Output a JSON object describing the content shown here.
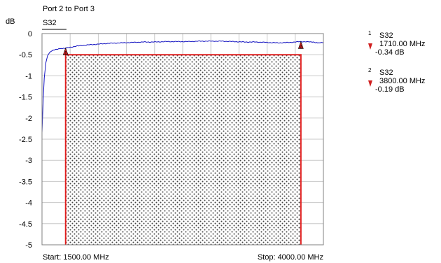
{
  "chart_data": {
    "type": "line",
    "title": "Port 2 to Port 3",
    "trace_label": "S32",
    "ylabel": "dB",
    "ylim": [
      -5,
      0
    ],
    "yticks": [
      0,
      -0.5,
      -1,
      -1.5,
      -2,
      -2.5,
      -3,
      -3.5,
      -4,
      -4.5,
      -5
    ],
    "ytick_labels": [
      "0",
      "-0.5",
      "-1",
      "-1.5",
      "-2",
      "-2.5",
      "-3",
      "-3.5",
      "-4",
      "-4.5",
      "-5"
    ],
    "xlim": [
      1500,
      4000
    ],
    "x_unit": "MHz",
    "start_label": "Start: 1500.00 MHz",
    "stop_label": "Stop: 4000.00 MHz",
    "grid": true,
    "series": [
      {
        "color": "#1010c0",
        "x": [
          1500,
          1510,
          1520,
          1535,
          1550,
          1570,
          1600,
          1650,
          1700,
          1800,
          1900,
          2000,
          2100,
          2200,
          2300,
          2400,
          2500,
          2600,
          2700,
          2800,
          2900,
          3000,
          3100,
          3200,
          3300,
          3400,
          3500,
          3600,
          3700,
          3800,
          3900,
          3950,
          4000
        ],
        "y": [
          -2.35,
          -1.6,
          -1.05,
          -0.68,
          -0.52,
          -0.44,
          -0.39,
          -0.36,
          -0.35,
          -0.3,
          -0.27,
          -0.25,
          -0.23,
          -0.22,
          -0.21,
          -0.2,
          -0.2,
          -0.19,
          -0.19,
          -0.19,
          -0.18,
          -0.18,
          -0.18,
          -0.19,
          -0.2,
          -0.2,
          -0.21,
          -0.22,
          -0.21,
          -0.19,
          -0.2,
          -0.22,
          -0.21
        ]
      }
    ],
    "limit_mask": {
      "x_start": 1710,
      "x_end": 3800,
      "level": -0.5,
      "color": "#e02020"
    },
    "markers": [
      {
        "id": "1",
        "trace": "S32",
        "x": 1710,
        "y": -0.34,
        "freq_label": "1710.00 MHz",
        "value_label": "-0.34 dB"
      },
      {
        "id": "2",
        "trace": "S32",
        "x": 3800,
        "y": -0.19,
        "freq_label": "3800.00 MHz",
        "value_label": "-0.19 dB"
      }
    ]
  }
}
